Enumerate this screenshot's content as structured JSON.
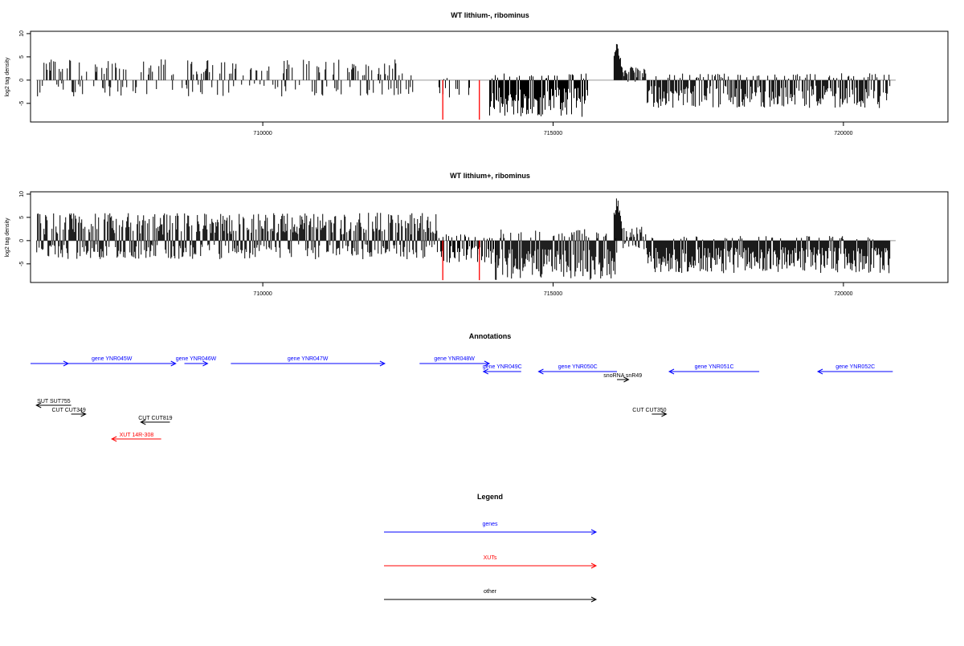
{
  "chart_data": [
    {
      "type": "bar",
      "title": "WT lithium-, ribominus",
      "ylabel": "log2 tag density",
      "xlim": [
        706000,
        721800
      ],
      "ylim": [
        -9,
        10.5
      ],
      "x_ticks": [
        "710000",
        "715000",
        "720000"
      ],
      "x_tick_values": [
        710000,
        715000,
        720000
      ],
      "y_ticks": [
        "10",
        "5",
        "0",
        "-5"
      ],
      "y_tick_values": [
        10,
        5,
        0,
        -5
      ],
      "baseline_range": [
        706100,
        720900
      ],
      "series": [
        {
          "start": 706100,
          "end": 712600,
          "min": -3.5,
          "max": 4.5,
          "density": 0.45
        },
        {
          "start": 713000,
          "end": 713600,
          "min": -4.5,
          "max": 0.5,
          "density": 0.3
        },
        {
          "start": 713900,
          "end": 715600,
          "min": -8,
          "max": 1.5,
          "density": 1.0
        },
        {
          "start": 716050,
          "end": 716200,
          "min": 0,
          "max": 8.5,
          "peak": true
        },
        {
          "start": 716200,
          "end": 716600,
          "min": -1,
          "max": 3,
          "density": 0.8
        },
        {
          "start": 716600,
          "end": 720800,
          "min": -6,
          "max": 1.5,
          "density": 0.85
        }
      ],
      "highlight_x": [
        713100,
        713730
      ],
      "highlight_value": -8.5,
      "highlight_color": "#ff0000",
      "bar_color": "#000000"
    },
    {
      "type": "bar",
      "title": "WT lithium+, ribominus",
      "ylabel": "log2 tag density",
      "xlim": [
        706000,
        721800
      ],
      "ylim": [
        -9,
        10.5
      ],
      "x_ticks": [
        "710000",
        "715000",
        "720000"
      ],
      "x_tick_values": [
        710000,
        715000,
        720000
      ],
      "y_ticks": [
        "10",
        "5",
        "0",
        "-5"
      ],
      "y_tick_values": [
        10,
        5,
        0,
        -5
      ],
      "baseline_range": [
        706100,
        720900
      ],
      "series": [
        {
          "start": 706100,
          "end": 713000,
          "min": -4,
          "max": 6,
          "density": 1.0
        },
        {
          "start": 713000,
          "end": 714000,
          "min": -5,
          "max": 1.5,
          "density": 0.7
        },
        {
          "start": 714000,
          "end": 716100,
          "min": -8.5,
          "max": 2.5,
          "density": 1.0
        },
        {
          "start": 716050,
          "end": 716200,
          "min": 0,
          "max": 10,
          "peak": true
        },
        {
          "start": 716200,
          "end": 716600,
          "min": -2,
          "max": 3,
          "density": 0.8
        },
        {
          "start": 716600,
          "end": 720800,
          "min": -7,
          "max": 1,
          "density": 1.0
        }
      ],
      "highlight_x": [
        713100,
        713730
      ],
      "highlight_value": -8.5,
      "highlight_color": "#ff0000",
      "bar_color": "#000000"
    }
  ],
  "annotations": {
    "title": "Annotations",
    "genes": [
      {
        "label": "",
        "start": 706000,
        "end": 706650,
        "strand": "+"
      },
      {
        "label": "gene YNR045W",
        "start": 706300,
        "end": 708500,
        "strand": "+"
      },
      {
        "label": "gene YNR046W",
        "start": 708650,
        "end": 709050,
        "strand": "+"
      },
      {
        "label": "gene YNR047W",
        "start": 709450,
        "end": 712100,
        "strand": "+"
      },
      {
        "label": "gene YNR048W",
        "start": 712700,
        "end": 713900,
        "strand": "+"
      },
      {
        "label": "gene YNR049C",
        "start": 713800,
        "end": 714450,
        "strand": "-"
      },
      {
        "label": "gene YNR050C",
        "start": 714750,
        "end": 716100,
        "strand": "-"
      },
      {
        "label": "gene YNR051C",
        "start": 717000,
        "end": 718550,
        "strand": "-"
      },
      {
        "label": "gene YNR052C",
        "start": 719560,
        "end": 720850,
        "strand": "-"
      }
    ],
    "others": [
      {
        "label": "SUT SUT755",
        "start": 706100,
        "end": 706700,
        "strand": "-",
        "row": 0
      },
      {
        "label": "CUT CUT349",
        "start": 706700,
        "end": 706950,
        "strand": "+",
        "row": 1
      },
      {
        "label": "CUT CUT819",
        "start": 707900,
        "end": 708400,
        "strand": "-",
        "row": 2
      },
      {
        "label": "snoRNA snR49",
        "start": 716100,
        "end": 716300,
        "strand": "+",
        "row": -1
      },
      {
        "label": "CUT CUT350",
        "start": 716700,
        "end": 716950,
        "strand": "+",
        "row": 1
      }
    ],
    "xuts": [
      {
        "label": "XUT 14R-308",
        "start": 707400,
        "end": 708250,
        "strand": "-",
        "row": 3
      }
    ]
  },
  "legend": {
    "title": "Legend",
    "items": [
      {
        "label": "genes",
        "color": "#0000ff"
      },
      {
        "label": "XUTs",
        "color": "#ff0000"
      },
      {
        "label": "other",
        "color": "#000000"
      }
    ]
  },
  "colors": {
    "gene": "#0000ff",
    "xut": "#ff0000",
    "other": "#000000",
    "axis": "#000000",
    "baseline": "#999999"
  }
}
